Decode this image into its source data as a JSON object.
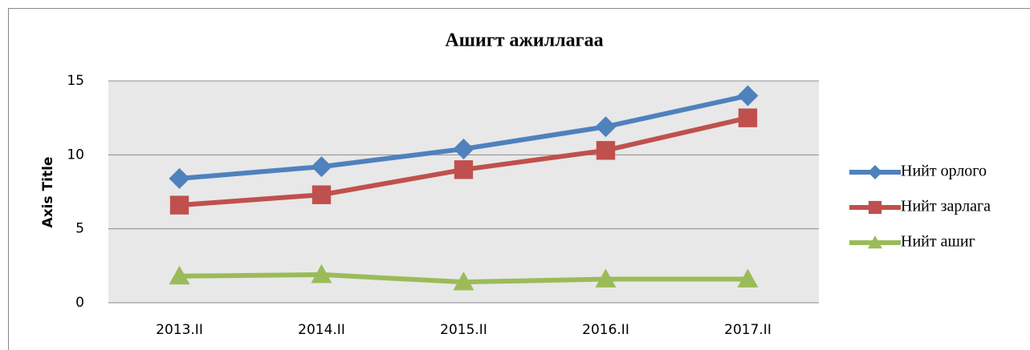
{
  "chart_data": {
    "type": "line",
    "title": "Ашигт ажиллагаа",
    "y_label": "Axis Title",
    "categories": [
      "2013.II",
      "2014.II",
      "2015.II",
      "2016.II",
      "2017.II"
    ],
    "series": [
      {
        "name": "Нийт орлого",
        "color": "#4f81bd",
        "marker": "diamond",
        "values": [
          8.4,
          9.2,
          10.4,
          11.9,
          14.0
        ]
      },
      {
        "name": "Нийт зарлага",
        "color": "#c0504d",
        "marker": "square",
        "values": [
          6.6,
          7.3,
          9.0,
          10.3,
          12.5
        ]
      },
      {
        "name": "Нийт ашиг",
        "color": "#9bbb59",
        "marker": "triangle",
        "values": [
          1.8,
          1.9,
          1.4,
          1.6,
          1.6
        ]
      }
    ],
    "ylim": [
      0,
      15
    ],
    "yticks": [
      0,
      5,
      10,
      15
    ],
    "grid": true,
    "legend": "right"
  }
}
